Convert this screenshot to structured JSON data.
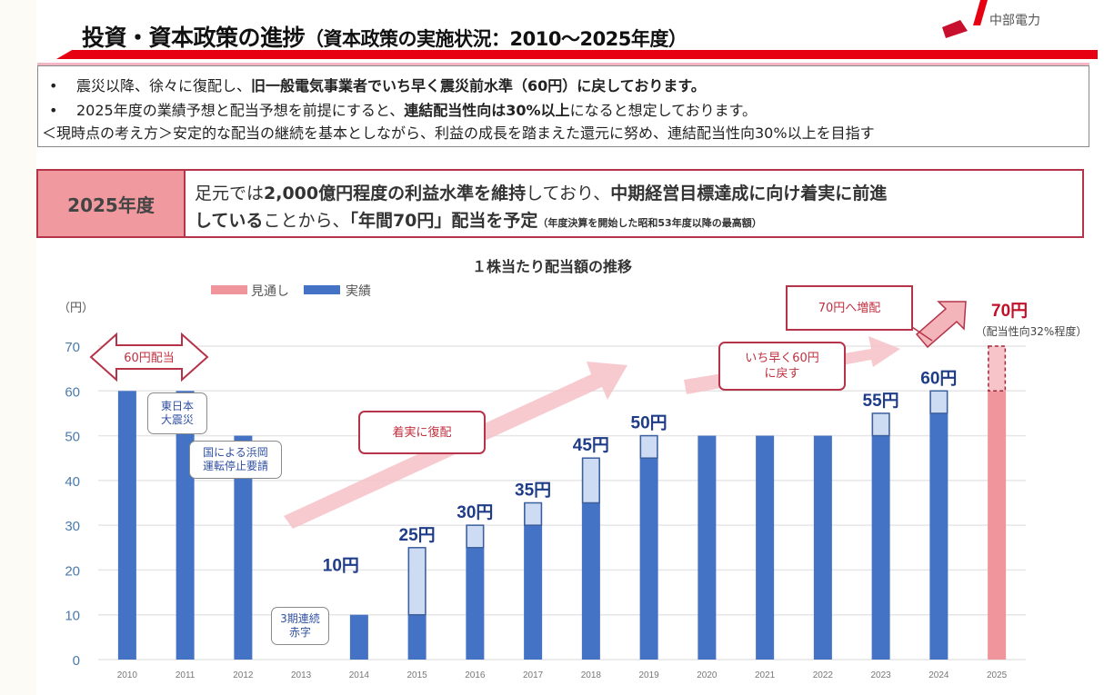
{
  "header": {
    "title_main": "投資・資本政策の進捗",
    "title_sub": "（資本政策の実施状況：2010～2025年度）",
    "logo_text": "中部電力"
  },
  "summary_box": {
    "bullet": "•",
    "line1_normal": "震災以降、徐々に復配し、",
    "line1_bold": "旧一般電気事業者でいち早く震災前水準（60円）に戻しております。",
    "line2_normal_a": "2025年度の業績予想と配当予想を前提にすると、",
    "line2_bold": "連結配当性向は30%以上",
    "line2_normal_b": "になると想定しております。",
    "line3": "＜現時点の考え方＞安定的な配当の継続を基本としながら、利益の成長を踏まえた還元に努め、連結配当性向30%以上を目指す"
  },
  "fy_box": {
    "tag": "2025年度",
    "l1_a": "足元では",
    "l1_b": "2,000億円程度の利益水準を維持",
    "l1_c": "しており、",
    "l1_d": "中期経営目標達成に向け着実に前進",
    "l2_a": "している",
    "l2_b": "ことから、",
    "l2_c": "「年間70円」配当を予定",
    "l2_note": "（年度決算を開始した昭和53年度以降の最高額）"
  },
  "chart_data": {
    "type": "bar",
    "title": "１株当たり配当額の推移",
    "ylabel": "（円）",
    "xlabel": "",
    "ylim": [
      0,
      70
    ],
    "yticks": [
      0,
      10,
      20,
      30,
      40,
      50,
      60,
      70
    ],
    "grid": true,
    "legend": {
      "placement": "top-left",
      "entries": [
        "見通し",
        "実績"
      ]
    },
    "categories": [
      "2010",
      "2011",
      "2012",
      "2013",
      "2014",
      "2015",
      "2016",
      "2017",
      "2018",
      "2019",
      "2020",
      "2021",
      "2022",
      "2023",
      "2024",
      "2025"
    ],
    "series": [
      {
        "name": "実績",
        "color": "#4472c4",
        "values": [
          60,
          60,
          50,
          0,
          10,
          25,
          30,
          35,
          45,
          50,
          50,
          50,
          50,
          55,
          60,
          null
        ]
      },
      {
        "name": "見通し",
        "color": "#f0959b",
        "values": [
          null,
          null,
          null,
          null,
          null,
          null,
          null,
          null,
          null,
          null,
          null,
          null,
          null,
          null,
          null,
          70
        ]
      }
    ],
    "increase_from_previous": [
      null,
      null,
      null,
      null,
      null,
      15,
      5,
      5,
      10,
      5,
      0,
      0,
      0,
      5,
      5,
      10
    ],
    "value_labels": {
      "2014": "10円",
      "2015": "25円",
      "2016": "30円",
      "2017": "35円",
      "2018": "45円",
      "2019": "50円",
      "2023": "55円",
      "2024": "60円",
      "2025": "70円"
    },
    "forecast_note": "（配当性向32%程度）",
    "annotations": {
      "dividend_60": "60円配当",
      "earthquake": "東日本\n大震災",
      "hamaoka": "国による浜岡\n運転停止要請",
      "deficit": "3期連続\n赤字",
      "steady": "着実に復配",
      "early60": "いち早く60円\nに戻す",
      "raise70": "70円へ増配"
    },
    "colors": {
      "actual": "#4472c4",
      "increase": "#cddcf2",
      "forecast": "#f0959b",
      "accent_red": "#c0303f",
      "label_blue": "#1f3c88",
      "axis_text": "#4a7bab"
    }
  }
}
